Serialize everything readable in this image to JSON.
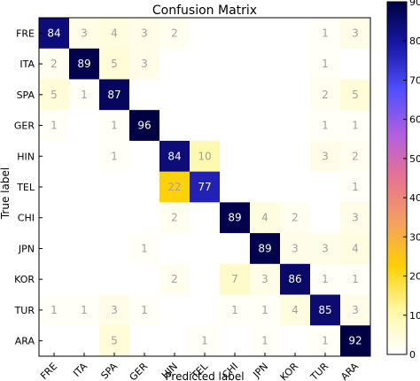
{
  "chart_data": {
    "type": "heatmap",
    "title": "Confusion Matrix",
    "xlabel": "Predicted label",
    "ylabel": "True label",
    "categories": [
      "FRE",
      "ITA",
      "SPA",
      "GER",
      "HIN",
      "TEL",
      "CHI",
      "JPN",
      "KOR",
      "TUR",
      "ARA"
    ],
    "matrix": [
      [
        84,
        3,
        4,
        3,
        2,
        0,
        0,
        0,
        0,
        1,
        3
      ],
      [
        2,
        89,
        5,
        3,
        0,
        0,
        0,
        0,
        0,
        1,
        0
      ],
      [
        5,
        1,
        87,
        0,
        0,
        0,
        0,
        0,
        0,
        2,
        5
      ],
      [
        1,
        0,
        1,
        96,
        0,
        0,
        0,
        0,
        0,
        1,
        1
      ],
      [
        0,
        0,
        1,
        0,
        84,
        10,
        0,
        0,
        0,
        3,
        2
      ],
      [
        0,
        0,
        0,
        0,
        22,
        77,
        0,
        0,
        0,
        0,
        1
      ],
      [
        0,
        0,
        0,
        0,
        2,
        0,
        89,
        4,
        2,
        0,
        3
      ],
      [
        0,
        0,
        0,
        1,
        0,
        0,
        0,
        89,
        3,
        3,
        4
      ],
      [
        0,
        0,
        0,
        0,
        2,
        0,
        7,
        3,
        86,
        1,
        1
      ],
      [
        1,
        1,
        3,
        1,
        0,
        0,
        1,
        1,
        4,
        85,
        3
      ],
      [
        0,
        0,
        5,
        0,
        0,
        1,
        0,
        1,
        0,
        1,
        92
      ]
    ],
    "colorbar": {
      "min": 0,
      "max": 90,
      "ticks": [
        "0",
        "10",
        "20",
        "30",
        "40",
        "50",
        "60",
        "70",
        "80",
        "90"
      ]
    },
    "colormap": [
      "#ffffff",
      "#fff8a6",
      "#ffd000",
      "#f4a060",
      "#e8738f",
      "#b05fe0",
      "#5050ff",
      "#1818a8",
      "#000044"
    ]
  }
}
